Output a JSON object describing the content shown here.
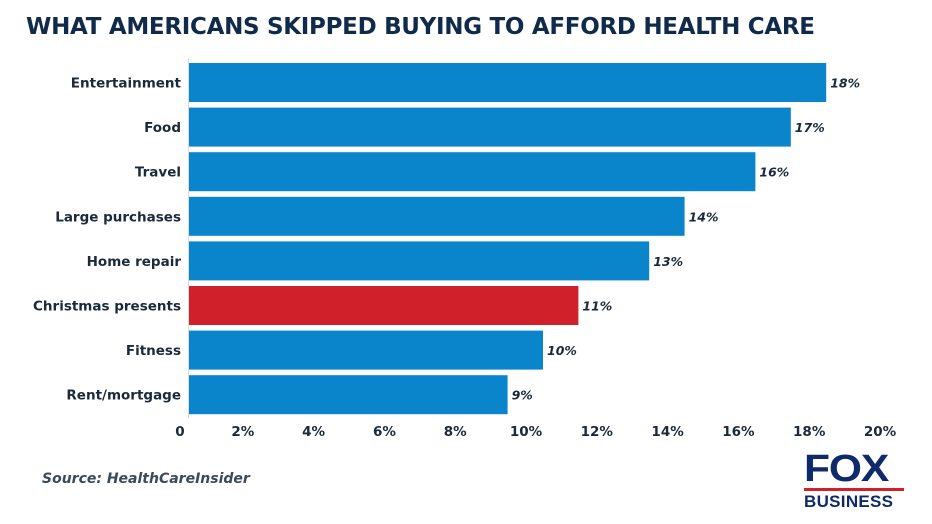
{
  "chart_data": {
    "type": "bar",
    "orientation": "horizontal",
    "title": "WHAT AMERICANS SKIPPED BUYING TO AFFORD HEALTH CARE",
    "categories": [
      "Entertainment",
      "Food",
      "Travel",
      "Large purchases",
      "Home repair",
      "Christmas presents",
      "Fitness",
      "Rent/mortgage"
    ],
    "values": [
      18,
      17,
      16,
      14,
      13,
      11,
      10,
      9
    ],
    "value_labels": [
      "18%",
      "17%",
      "16%",
      "14%",
      "13%",
      "11%",
      "10%",
      "9%"
    ],
    "xlim": [
      0,
      20
    ],
    "xticks": [
      0,
      2,
      4,
      6,
      8,
      10,
      12,
      14,
      16,
      18,
      20
    ],
    "xtick_labels": [
      "0",
      "2%",
      "4%",
      "6%",
      "8%",
      "10%",
      "12%",
      "14%",
      "16%",
      "18%",
      "20%"
    ],
    "xlabel": "",
    "ylabel": "",
    "grid": false,
    "colors": {
      "default": "#0a85cc",
      "highlight": "#d0202a"
    },
    "highlight_category": "Christmas presents"
  },
  "source": "Source: HealthCareInsider",
  "logo": {
    "line1": "FOX",
    "line2": "BUSINESS"
  }
}
